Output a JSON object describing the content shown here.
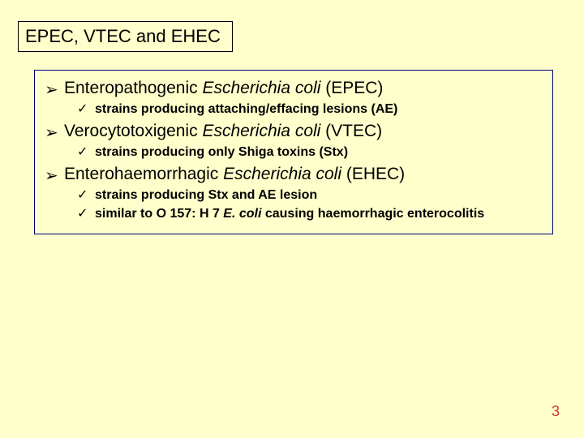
{
  "colors": {
    "background": "#ffffcc",
    "title_border": "#000000",
    "content_border": "#000080",
    "text": "#000000",
    "page_num": "#cc3333"
  },
  "title": "EPEC, VTEC and EHEC",
  "items": [
    {
      "main_pre": "Enteropathogenic ",
      "main_italic": "Escherichia coli ",
      "main_post": "(EPEC)",
      "subs": [
        {
          "pre": "strains producing attaching/effacing lesions (AE)",
          "italic": "",
          "post": ""
        }
      ]
    },
    {
      "main_pre": "Verocytotoxigenic ",
      "main_italic": "Escherichia coli ",
      "main_post": "(VTEC)",
      "subs": [
        {
          "pre": "strains producing only Shiga toxins (Stx)",
          "italic": "",
          "post": ""
        }
      ]
    },
    {
      "main_pre": "Enterohaemorrhagic ",
      "main_italic": "Escherichia coli ",
      "main_post": "(EHEC)",
      "subs": [
        {
          "pre": "strains producing Stx and AE lesion",
          "italic": "",
          "post": ""
        },
        {
          "pre": "similar to O 157: H 7 ",
          "italic": "E. coli ",
          "post": "causing haemorrhagic enterocolitis"
        }
      ]
    }
  ],
  "page_number": "3",
  "bullets": {
    "arrow": "➢",
    "check": "✓"
  }
}
